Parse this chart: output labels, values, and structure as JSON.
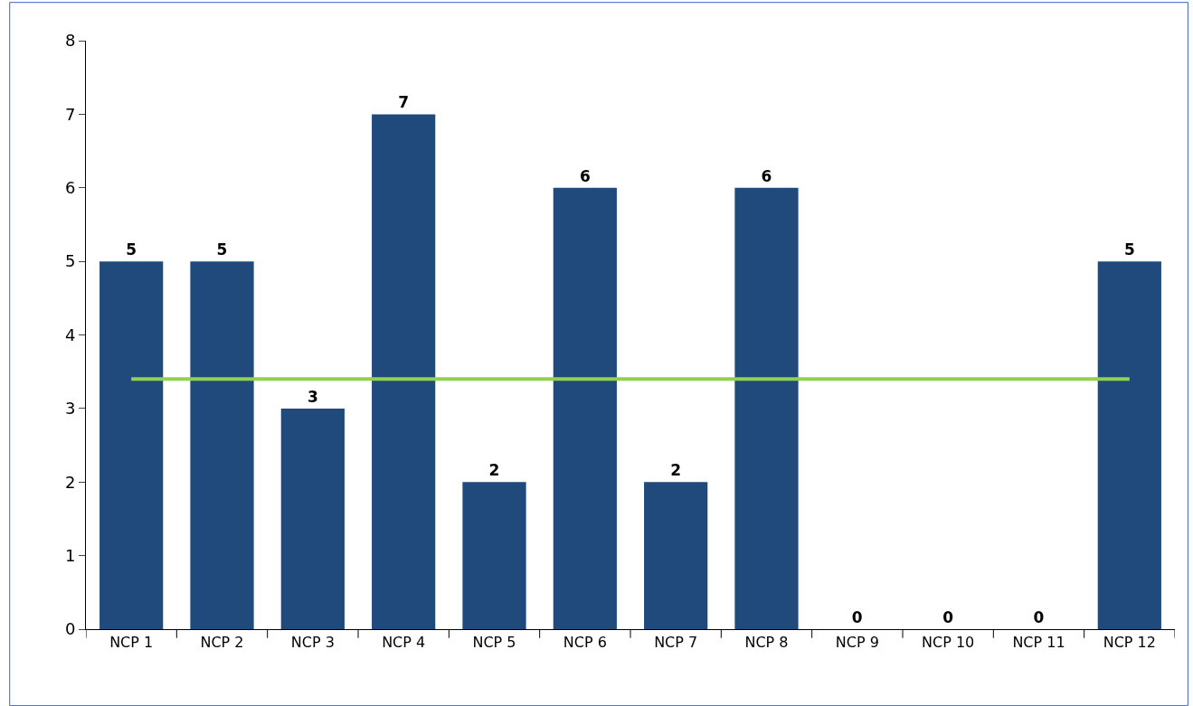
{
  "chart_data": {
    "type": "bar",
    "categories": [
      "NCP 1",
      "NCP 2",
      "NCP 3",
      "NCP 4",
      "NCP 5",
      "NCP 6",
      "NCP 7",
      "NCP 8",
      "NCP 9",
      "NCP 10",
      "NCP 11",
      "NCP 12"
    ],
    "series": [
      {
        "color": "#204a7c",
        "values": [
          5,
          5,
          3,
          7,
          2,
          6,
          2,
          6,
          0,
          0,
          0,
          5
        ],
        "value_labels": [
          "5",
          "5",
          "3",
          "7",
          "2",
          "6",
          "2",
          "6",
          "0",
          "0",
          "0",
          "5"
        ]
      },
      {
        "type": "line",
        "color": "#92d050",
        "values": [
          3.4,
          3.4,
          3.4,
          3.4,
          3.4,
          3.4,
          3.4,
          3.4,
          3.4,
          3.4,
          3.4,
          3.4
        ]
      }
    ],
    "ylim": [
      0,
      8
    ],
    "yticks": [
      0,
      1,
      2,
      3,
      4,
      5,
      6,
      7,
      8
    ],
    "marker": "none",
    "line_style": "solid"
  }
}
